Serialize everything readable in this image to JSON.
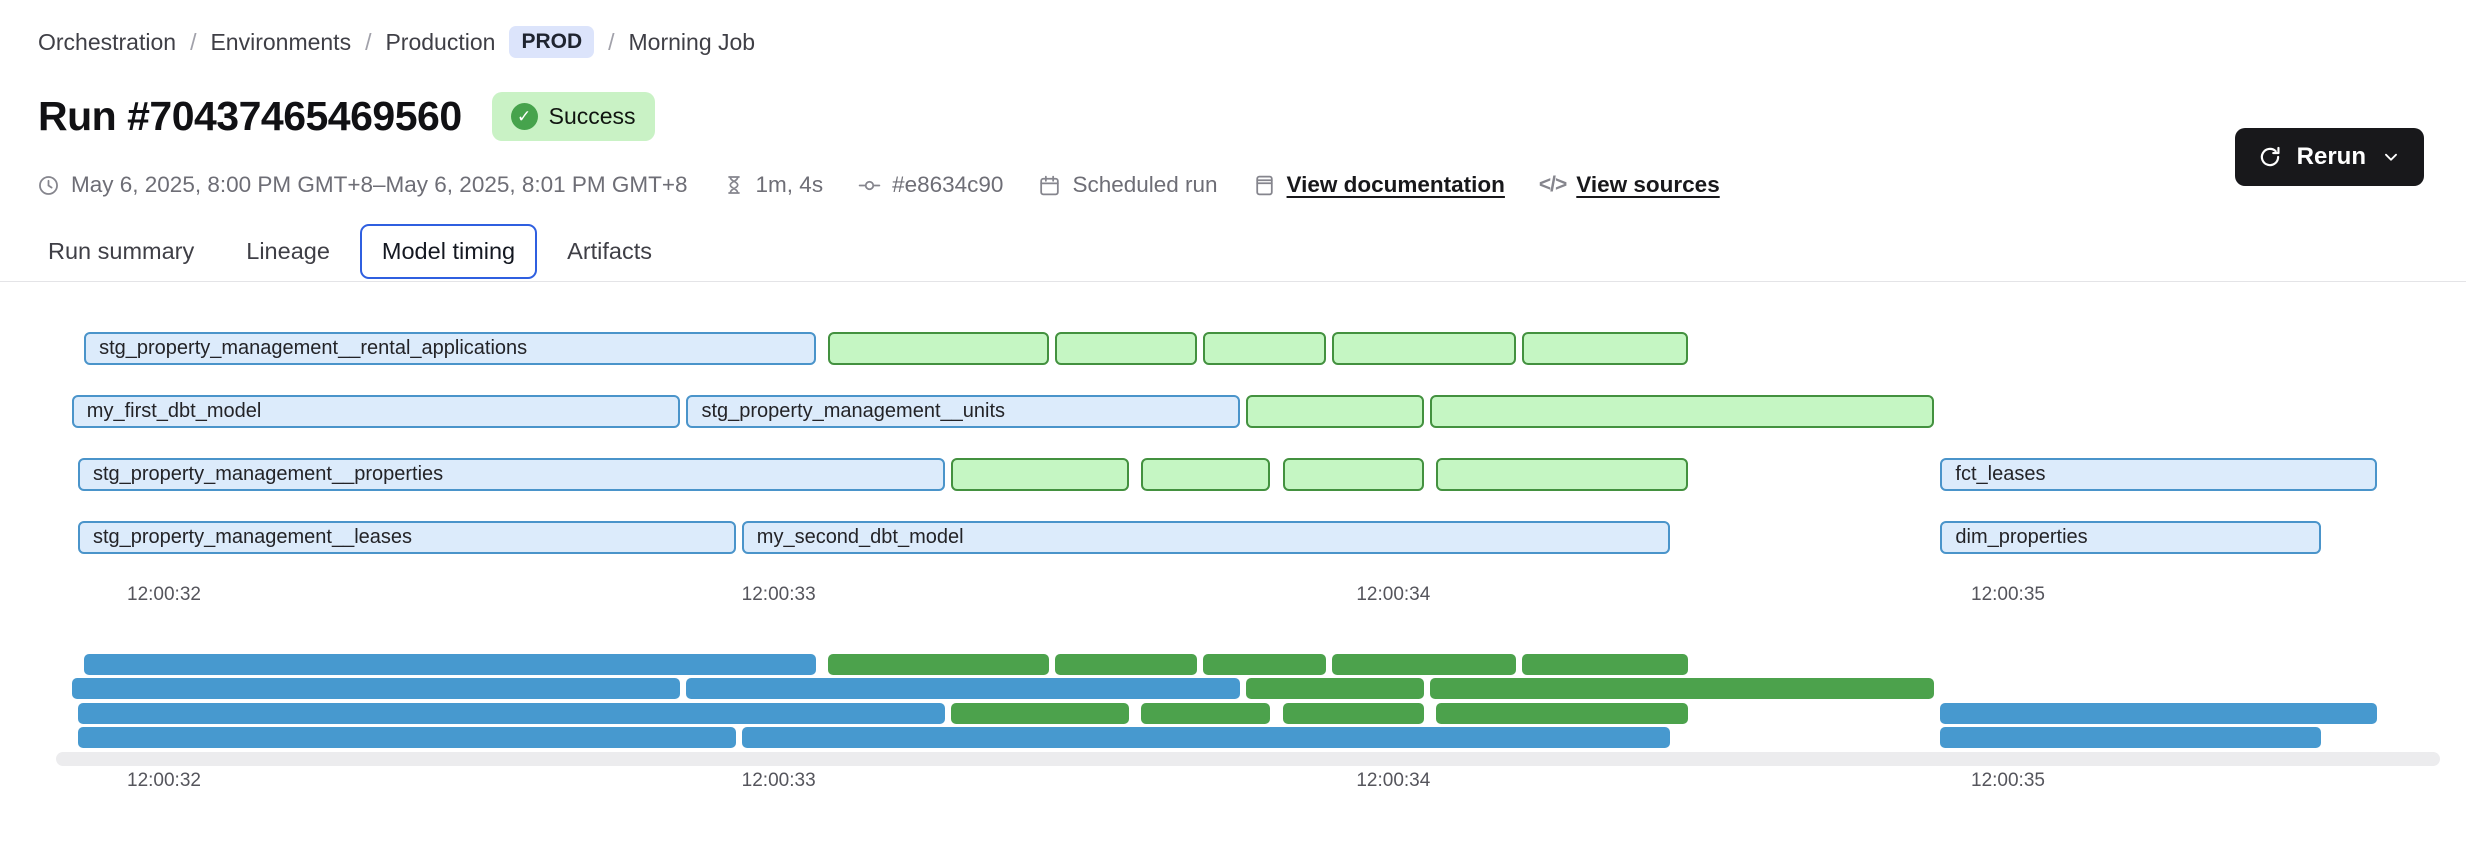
{
  "breadcrumb": {
    "separator": "/",
    "items": [
      {
        "label": "Orchestration"
      },
      {
        "label": "Environments"
      },
      {
        "label": "Production"
      },
      {
        "label": "Morning Job"
      }
    ],
    "environment_badge": "PROD"
  },
  "header": {
    "title": "Run #70437465469560",
    "status": "Success"
  },
  "meta": {
    "date_range": "May 6, 2025, 8:00 PM GMT+8–May 6, 2025, 8:01 PM GMT+8",
    "duration": "1m, 4s",
    "commit": "#e8634c90",
    "trigger": "Scheduled run",
    "documentation_link": "View documentation",
    "sources_link": "View sources",
    "rerun_label": "Rerun"
  },
  "tabs": [
    {
      "label": "Run summary",
      "active": false
    },
    {
      "label": "Lineage",
      "active": false
    },
    {
      "label": "Model timing",
      "active": true
    },
    {
      "label": "Artifacts",
      "active": false
    }
  ],
  "chart_data": {
    "type": "gantt",
    "title": "Model timing",
    "time_unit": "seconds after 12:00:00 (chart clock)",
    "axis_ticks": [
      {
        "label": "12:00:32",
        "t": 32
      },
      {
        "label": "12:00:33",
        "t": 33
      },
      {
        "label": "12:00:34",
        "t": 34
      },
      {
        "label": "12:00:35",
        "t": 35
      }
    ],
    "colors": {
      "model_fill": "#dcebfb",
      "model_border": "#4a94ca",
      "test_fill": "#c5f6c3",
      "test_border": "#43913f",
      "minimap_model": "#4799cf",
      "minimap_test": "#4ca24c"
    },
    "legend": {
      "model": "blue",
      "test": "green"
    },
    "rows": [
      [
        {
          "label": "stg_property_management__rental_applications",
          "kind": "model",
          "start": 31.87,
          "end": 33.06
        },
        {
          "label": "",
          "kind": "test",
          "start": 33.08,
          "end": 33.44
        },
        {
          "label": "",
          "kind": "test",
          "start": 33.45,
          "end": 33.68
        },
        {
          "label": "",
          "kind": "test",
          "start": 33.69,
          "end": 33.89
        },
        {
          "label": "",
          "kind": "test",
          "start": 33.9,
          "end": 34.2
        },
        {
          "label": "",
          "kind": "test",
          "start": 34.21,
          "end": 34.48
        }
      ],
      [
        {
          "label": "my_first_dbt_model",
          "kind": "model",
          "start": 31.85,
          "end": 32.84
        },
        {
          "label": "stg_property_management__units",
          "kind": "model",
          "start": 32.85,
          "end": 33.75
        },
        {
          "label": "",
          "kind": "test",
          "start": 33.76,
          "end": 34.05
        },
        {
          "label": "",
          "kind": "test",
          "start": 34.06,
          "end": 34.88
        }
      ],
      [
        {
          "label": "stg_property_management__properties",
          "kind": "model",
          "start": 31.86,
          "end": 33.27
        },
        {
          "label": "",
          "kind": "test",
          "start": 33.28,
          "end": 33.57
        },
        {
          "label": "",
          "kind": "test",
          "start": 33.59,
          "end": 33.8
        },
        {
          "label": "",
          "kind": "test",
          "start": 33.82,
          "end": 34.05
        },
        {
          "label": "",
          "kind": "test",
          "start": 34.07,
          "end": 34.48
        },
        {
          "label": "fct_leases",
          "kind": "model",
          "start": 34.89,
          "end": 35.6
        }
      ],
      [
        {
          "label": "stg_property_management__leases",
          "kind": "model",
          "start": 31.86,
          "end": 32.93
        },
        {
          "label": "my_second_dbt_model",
          "kind": "model",
          "start": 32.94,
          "end": 34.45
        },
        {
          "label": "dim_properties",
          "kind": "model",
          "start": 34.89,
          "end": 35.51
        }
      ]
    ]
  }
}
